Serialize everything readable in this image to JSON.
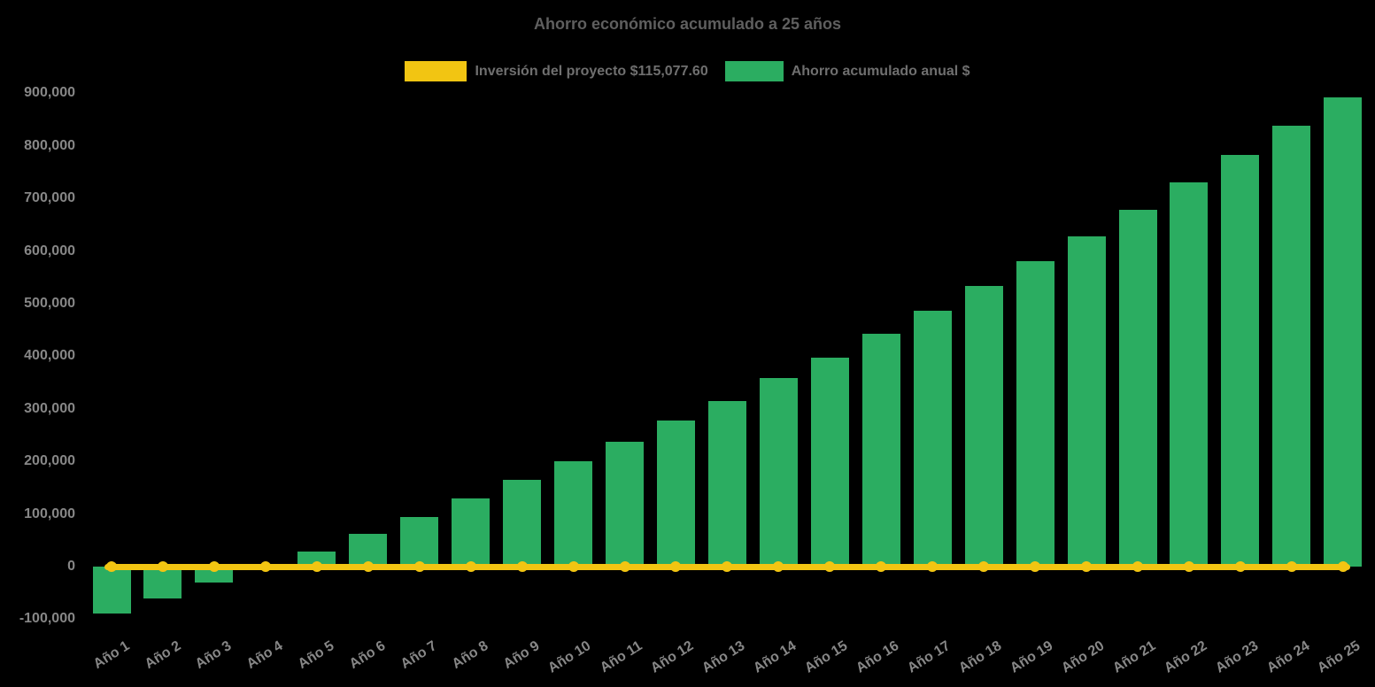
{
  "page": {
    "background_color": "#000000"
  },
  "chart_data": {
    "type": "bar",
    "title": "Ahorro económico acumulado a 25 años",
    "categories": [
      "Año 1",
      "Año 2",
      "Año 3",
      "Año 4",
      "Año 5",
      "Año 6",
      "Año 7",
      "Año 8",
      "Año 9",
      "Año 10",
      "Año 11",
      "Año 12",
      "Año 13",
      "Año 14",
      "Año 15",
      "Año 16",
      "Año 17",
      "Año 18",
      "Año 19",
      "Año 20",
      "Año 21",
      "Año 22",
      "Año 23",
      "Año 24",
      "Año 25"
    ],
    "series": [
      {
        "name": "Inversión del proyecto $115,077.60",
        "type": "line",
        "color": "#f2c512",
        "marker": "circle",
        "values": [
          0,
          0,
          0,
          0,
          0,
          0,
          0,
          0,
          0,
          0,
          0,
          0,
          0,
          0,
          0,
          0,
          0,
          0,
          0,
          0,
          0,
          0,
          0,
          0,
          0
        ]
      },
      {
        "name": "Ahorro acumulado anual $",
        "type": "bar",
        "color": "#2bad61",
        "values": [
          -89000,
          -61000,
          -31000,
          -1000,
          29000,
          62000,
          95000,
          129000,
          165000,
          201000,
          238000,
          278000,
          315000,
          358000,
          397000,
          442000,
          486000,
          534000,
          581000,
          628000,
          678000,
          730000,
          783000,
          839000,
          893000
        ]
      }
    ],
    "investment_amount": "$115,077.60",
    "xlabel": "",
    "ylabel": "",
    "y_axis": {
      "min": -100000,
      "max": 900000,
      "tick_step": 100000,
      "tick_values": [
        900000,
        800000,
        700000,
        600000,
        500000,
        400000,
        300000,
        200000,
        100000,
        0,
        -100000
      ],
      "tick_labels": [
        "900,000",
        "800,000",
        "700,000",
        "600,000",
        "500,000",
        "400,000",
        "300,000",
        "200,000",
        "100,000",
        "0",
        "-100,000"
      ]
    },
    "grid": false,
    "legend_position": "top",
    "background": "#000000",
    "text_colors": {
      "title": "#5f5f5f",
      "legend": "#6f6f6f",
      "ticks": "#878787"
    }
  }
}
